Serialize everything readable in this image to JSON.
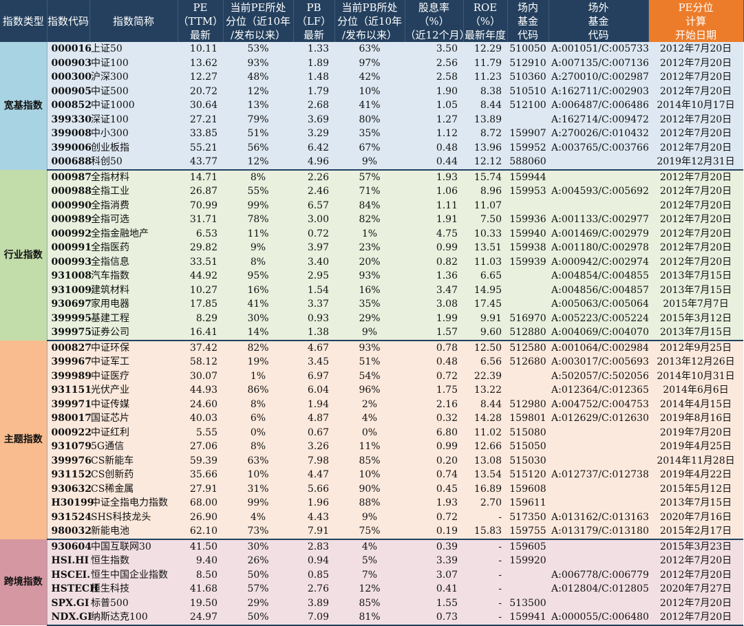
{
  "headers": {
    "type": "指数类型",
    "code": "指数代码",
    "name": "指数简称",
    "pe": [
      "PE",
      "（TTM）",
      "最新"
    ],
    "pe_pct": [
      "当前PE所处",
      "分位（近10年",
      "/发布以来）"
    ],
    "pb": [
      "PB",
      "（LF）",
      "最新"
    ],
    "pb_pct": [
      "当前PB所处",
      "分位（近10年",
      "/发布以来）"
    ],
    "div": [
      "股息率",
      "（%）",
      "（近12个月）"
    ],
    "roe": [
      "ROE",
      "（%）",
      "最新年度"
    ],
    "onsite": [
      "场内",
      "基金",
      "代码"
    ],
    "offsite": [
      "场外",
      "基金",
      "代码"
    ],
    "start": [
      "PE分位",
      "计算",
      "开始日期"
    ]
  },
  "colors": {
    "header_bg": "#24405e",
    "header_highlight": "#ec7c2a",
    "broad_band": "#a8d3e3",
    "broad_row": "#dde8f2",
    "industry_band": "#c2dcaa",
    "industry_row": "#e9f0de",
    "theme_band": "#f8bc8e",
    "theme_row": "#fce9dd",
    "cross_band": "#d597a2",
    "cross_row": "#f1dfe3"
  },
  "groups": [
    {
      "label": "宽基指数",
      "cls": "g-broad",
      "rows": [
        [
          "000016",
          "上证50",
          "10.11",
          "53%",
          "1.33",
          "63%",
          "3.50",
          "12.29",
          "510050",
          "A:001051/C:005733",
          "2012年7月20日"
        ],
        [
          "000903",
          "中证100",
          "13.62",
          "93%",
          "1.89",
          "97%",
          "2.56",
          "11.79",
          "512910",
          "A:007135/C:007136",
          "2012年7月20日"
        ],
        [
          "000300",
          "沪深300",
          "12.27",
          "48%",
          "1.48",
          "42%",
          "2.58",
          "11.23",
          "510360",
          "A:270010/C:002987",
          "2012年7月20日"
        ],
        [
          "000905",
          "中证500",
          "20.72",
          "12%",
          "1.79",
          "10%",
          "1.90",
          "8.38",
          "510510",
          "A:162711/C:002903",
          "2012年7月20日"
        ],
        [
          "000852",
          "中证1000",
          "30.64",
          "13%",
          "2.68",
          "41%",
          "1.05",
          "8.44",
          "512100",
          "A:006487/C:006486",
          "2014年10月17日"
        ],
        [
          "399330",
          "深证100",
          "27.21",
          "79%",
          "3.69",
          "80%",
          "1.27",
          "13.89",
          "",
          "A:162714/C:009472",
          "2012年7月20日"
        ],
        [
          "399008",
          "中小300",
          "33.85",
          "51%",
          "3.29",
          "35%",
          "1.12",
          "8.72",
          "159907",
          "A:270026/C:010432",
          "2012年7月20日"
        ],
        [
          "399006",
          "创业板指",
          "55.21",
          "56%",
          "6.42",
          "67%",
          "0.48",
          "13.96",
          "159952",
          "A:003765/C:003766",
          "2012年7月20日"
        ],
        [
          "000688",
          "科创50",
          "43.77",
          "12%",
          "4.96",
          "9%",
          "0.44",
          "12.12",
          "588060",
          "",
          "2019年12月31日"
        ]
      ]
    },
    {
      "label": "行业指数",
      "cls": "g-ind",
      "rows": [
        [
          "000987",
          "全指材料",
          "14.71",
          "8%",
          "2.26",
          "57%",
          "1.93",
          "15.74",
          "159944",
          "",
          "2012年7月20日"
        ],
        [
          "000988",
          "全指工业",
          "26.87",
          "55%",
          "2.46",
          "71%",
          "1.06",
          "8.96",
          "159953",
          "A:004593/C:005692",
          "2012年7月20日"
        ],
        [
          "000990",
          "全指消费",
          "70.99",
          "99%",
          "6.57",
          "84%",
          "1.11",
          "11.07",
          "",
          "",
          "2012年7月20日"
        ],
        [
          "000989",
          "全指可选",
          "31.71",
          "78%",
          "3.00",
          "82%",
          "1.91",
          "7.50",
          "159936",
          "A:001133/C:002977",
          "2012年7月20日"
        ],
        [
          "000992",
          "全指金融地产",
          "6.53",
          "11%",
          "0.72",
          "1%",
          "4.75",
          "10.33",
          "159940",
          "A:001469/C:002979",
          "2012年7月20日"
        ],
        [
          "000991",
          "全指医药",
          "29.82",
          "9%",
          "3.97",
          "23%",
          "0.99",
          "13.51",
          "159938",
          "A:001180/C:002978",
          "2012年7月20日"
        ],
        [
          "000993",
          "全指信息",
          "33.51",
          "8%",
          "3.40",
          "20%",
          "0.82",
          "11.03",
          "159939",
          "A:000942/C:002974",
          "2012年7月20日"
        ],
        [
          "931008",
          "汽车指数",
          "44.92",
          "95%",
          "2.95",
          "93%",
          "1.36",
          "6.65",
          "",
          "A:004854/C:004855",
          "2013年7月15日"
        ],
        [
          "931009",
          "建筑材料",
          "10.27",
          "16%",
          "1.54",
          "16%",
          "3.47",
          "14.95",
          "",
          "A:004856/C:004857",
          "2013年7月15日"
        ],
        [
          "930697",
          "家用电器",
          "17.85",
          "41%",
          "3.37",
          "35%",
          "3.08",
          "17.45",
          "",
          "A:005063/C:005064",
          "2015年7月7日"
        ],
        [
          "399995",
          "基建工程",
          "8.29",
          "30%",
          "0.93",
          "29%",
          "1.99",
          "9.91",
          "516970",
          "A:005223/C:005224",
          "2015年3月12日"
        ],
        [
          "399975",
          "证券公司",
          "16.41",
          "14%",
          "1.38",
          "9%",
          "1.57",
          "9.60",
          "512880",
          "A:004069/C:004070",
          "2013年7月15日"
        ]
      ]
    },
    {
      "label": "主题指数",
      "cls": "g-theme",
      "rows": [
        [
          "000827",
          "中证环保",
          "37.42",
          "82%",
          "4.67",
          "93%",
          "0.78",
          "12.50",
          "512580",
          "A:001064/C:002984",
          "2012年9月25日"
        ],
        [
          "399967",
          "中证军工",
          "58.12",
          "19%",
          "3.45",
          "51%",
          "0.48",
          "6.56",
          "512680",
          "A:003017/C:005693",
          "2013年12月26日"
        ],
        [
          "399989",
          "中证医疗",
          "30.07",
          "1%",
          "6.97",
          "54%",
          "0.72",
          "22.39",
          "",
          "A:502057/C:502056",
          "2014年10月31日"
        ],
        [
          "931151",
          "光伏产业",
          "44.93",
          "86%",
          "6.04",
          "96%",
          "1.75",
          "13.22",
          "",
          "A:012364/C:012365",
          "2014年6月6日"
        ],
        [
          "399971",
          "中证传媒",
          "24.60",
          "8%",
          "1.94",
          "2%",
          "2.16",
          "8.44",
          "512980",
          "A:004752/C:004753",
          "2014年4月15日"
        ],
        [
          "980017",
          "国证芯片",
          "40.03",
          "6%",
          "4.87",
          "4%",
          "0.32",
          "14.28",
          "159801",
          "A:012629/C:012630",
          "2019年8月16日"
        ],
        [
          "000922",
          "中证红利",
          "5.55",
          "0%",
          "0.67",
          "0%",
          "6.80",
          "11.02",
          "515080",
          "",
          "2019年7月20日"
        ],
        [
          "931079",
          "5G通信",
          "27.06",
          "8%",
          "3.26",
          "11%",
          "0.99",
          "12.66",
          "515050",
          "",
          "2019年4月25日"
        ],
        [
          "399976",
          "CS新能车",
          "59.39",
          "63%",
          "7.98",
          "85%",
          "0.20",
          "13.08",
          "515030",
          "",
          "2014年11月28日"
        ],
        [
          "931152",
          "CS创新药",
          "35.66",
          "10%",
          "4.47",
          "10%",
          "0.74",
          "13.54",
          "515120",
          "A:012737/C:012738",
          "2019年4月22日"
        ],
        [
          "930632",
          "CS稀金属",
          "27.91",
          "31%",
          "5.66",
          "90%",
          "0.45",
          "16.89",
          "159608",
          "",
          "2015年5月12日"
        ],
        [
          "H30199",
          "中证全指电力指数",
          "68.00",
          "99%",
          "1.96",
          "88%",
          "1.93",
          "2.70",
          "159611",
          "",
          "2013年7月15日"
        ],
        [
          "931524",
          "SHS科技龙头",
          "26.90",
          "4%",
          "4.43",
          "9%",
          "0.72",
          "-",
          "517350",
          "A:013162/C:013163",
          "2020年7月16日"
        ],
        [
          "980032",
          "新能电池",
          "62.10",
          "73%",
          "7.91",
          "75%",
          "0.19",
          "15.83",
          "159755",
          "A:013179/C:013180",
          "2015年2月17日"
        ]
      ]
    },
    {
      "label": "跨境指数",
      "cls": "g-cross",
      "rows": [
        [
          "930604",
          "中国互联网30",
          "41.50",
          "30%",
          "2.83",
          "4%",
          "0.39",
          "-",
          "159605",
          "",
          "2015年3月23日"
        ],
        [
          "HSI.HI",
          "恒生指数",
          "9.40",
          "26%",
          "0.94",
          "5%",
          "3.39",
          "-",
          "159920",
          "",
          "2012年7月20日"
        ],
        [
          "HSCEI.",
          "恒生中国企业指数",
          "8.50",
          "50%",
          "0.85",
          "7%",
          "3.07",
          "-",
          "",
          "A:006778/C:006779",
          "2012年7月20日"
        ],
        [
          "HSTECH",
          "恒生科技",
          "41.68",
          "57%",
          "2.76",
          "12%",
          "0.41",
          "-",
          "",
          "A:012804/C:012805",
          "2020年7月27日"
        ],
        [
          "SPX.GI",
          "标普500",
          "19.50",
          "29%",
          "3.89",
          "85%",
          "1.55",
          "-",
          "513500",
          "",
          "2012年7月20日"
        ],
        [
          "NDX.GI",
          "纳斯达克100",
          "24.97",
          "50%",
          "7.09",
          "81%",
          "0.73",
          "-",
          "159941",
          "A:000055/C:006480",
          "2012年7月20日"
        ]
      ]
    }
  ]
}
